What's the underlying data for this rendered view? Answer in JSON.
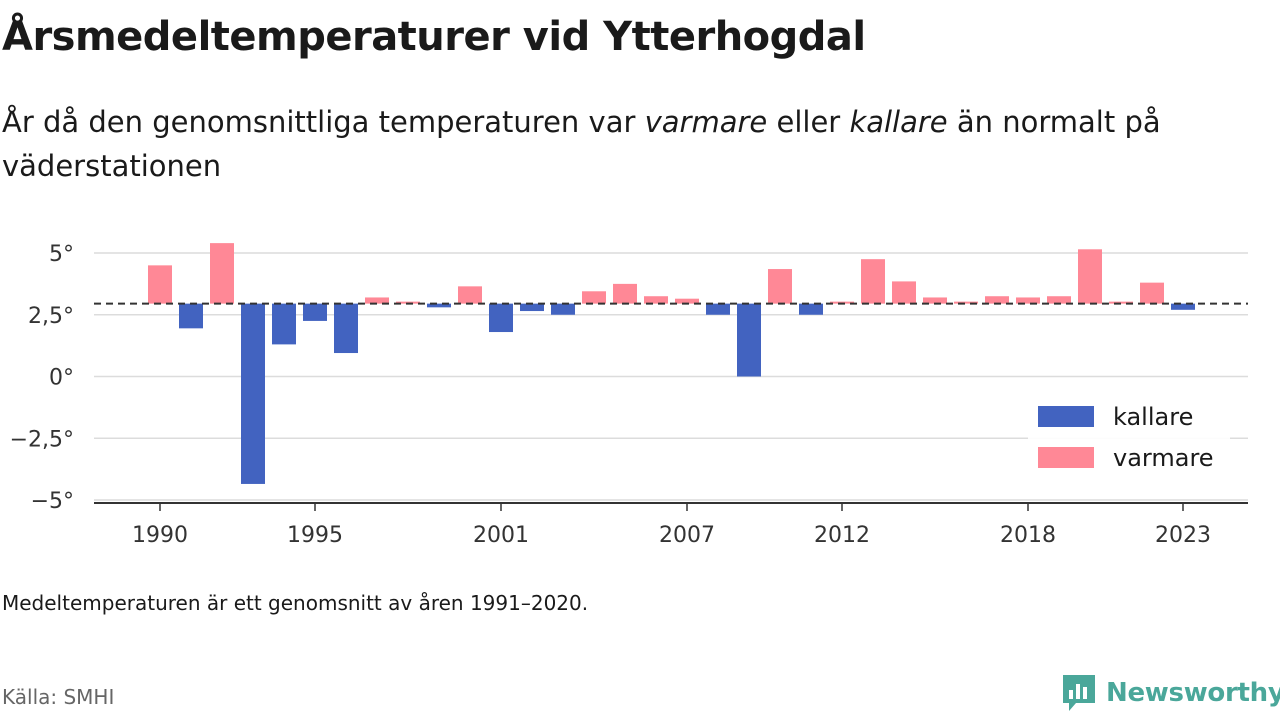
{
  "title": "Årsmedeltemperaturer vid Ytterhogdal",
  "subtitle": {
    "part1": "År då den genomsnittliga temperaturen var ",
    "warm_word": "varmare",
    "part2": " eller ",
    "cold_word": "kallare",
    "part3": " än normalt på väderstationen"
  },
  "note": "Medeltemperaturen är ett genomsnitt av åren 1991–2020.",
  "source": "Källa: SMHI",
  "brand": "Newsworthy",
  "colors": {
    "warmer": "#ff8896",
    "colder": "#4263c0",
    "brand": "#4aa79a"
  },
  "chart_data": {
    "type": "bar",
    "baseline": 2.95,
    "ylim": [
      -5,
      5
    ],
    "yticks": [
      5,
      2.5,
      0,
      -2.5,
      -5
    ],
    "ytick_labels": [
      "5°",
      "2,5°",
      "0°",
      "−2,5°",
      "−5°"
    ],
    "xlim": [
      1989,
      2025
    ],
    "xticks": [
      1990,
      1995,
      2001,
      2007,
      2012,
      2018,
      2023
    ],
    "xtick_labels": [
      "1990",
      "1995",
      "2001",
      "2007",
      "2012",
      "2018",
      "2023"
    ],
    "legend": [
      {
        "key": "colder",
        "label": "kallare"
      },
      {
        "key": "warmer",
        "label": "varmare"
      }
    ],
    "legend_position": "bottom-right",
    "years": [
      1990,
      1991,
      1992,
      1993,
      1994,
      1995,
      1996,
      1997,
      1998,
      1999,
      2000,
      2001,
      2002,
      2003,
      2004,
      2005,
      2006,
      2007,
      2008,
      2009,
      2010,
      2011,
      2012,
      2013,
      2014,
      2015,
      2016,
      2017,
      2018,
      2019,
      2020,
      2021,
      2022,
      2023
    ],
    "values": [
      4.5,
      1.95,
      5.4,
      -4.35,
      1.3,
      2.25,
      0.95,
      3.2,
      2.95,
      2.8,
      3.65,
      1.8,
      2.65,
      2.5,
      3.45,
      3.75,
      3.25,
      3.15,
      2.5,
      0.0,
      4.35,
      2.5,
      2.95,
      4.75,
      3.85,
      3.2,
      2.95,
      3.25,
      3.2,
      3.25,
      5.15,
      2.95,
      3.8,
      2.7
    ]
  }
}
